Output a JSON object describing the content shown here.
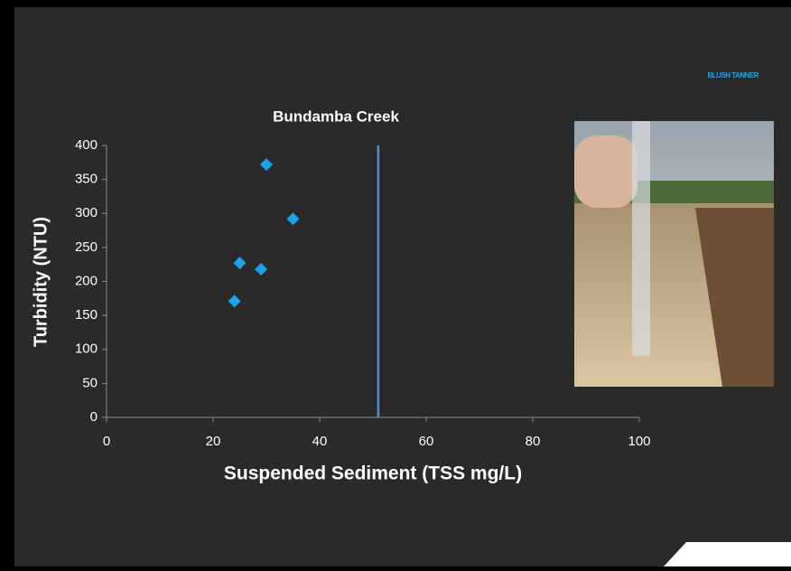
{
  "chart_data": {
    "type": "scatter",
    "title": "Bundamba Creek",
    "xlabel": "Suspended Sediment (TSS mg/L)",
    "ylabel": "Turbidity (NTU)",
    "logo": "BLUSH TANNER",
    "x": [
      24,
      25,
      29,
      30,
      35
    ],
    "values": [
      171,
      227,
      218,
      372,
      292
    ],
    "color": "#1aa3e8",
    "xlim": [
      0,
      100
    ],
    "xticks": [
      0,
      20,
      40,
      60,
      80,
      100
    ],
    "ylim": [
      0,
      400
    ],
    "yticks": [
      0,
      50,
      100,
      150,
      200,
      250,
      300,
      350,
      400
    ],
    "vline": 51,
    "vline_color": "#4f8fd0"
  }
}
